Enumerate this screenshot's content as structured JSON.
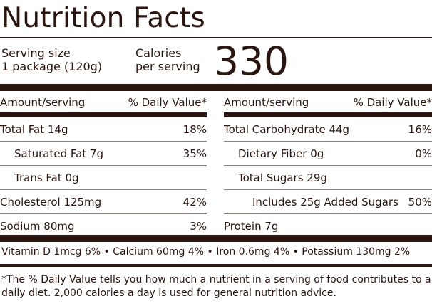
{
  "title": "Nutrition Facts",
  "serving": {
    "label": "Serving size",
    "value": "1 package (120g)"
  },
  "calories": {
    "label_line1": "Calories",
    "label_line2": "per serving",
    "value": "330"
  },
  "left": {
    "header": {
      "amount": "Amount/serving",
      "dv": "% Daily Value*"
    },
    "rows": [
      {
        "name": "Total Fat 14g",
        "dv": "18%"
      },
      {
        "name": "Saturated Fat 7g",
        "dv": "35%"
      },
      {
        "name": "Trans Fat 0g",
        "dv": ""
      },
      {
        "name": "Cholesterol 125mg",
        "dv": "42%"
      },
      {
        "name": "Sodium 80mg",
        "dv": "3%"
      }
    ]
  },
  "right": {
    "header": {
      "amount": "Amount/serving",
      "dv": "% Daily Value*"
    },
    "rows": [
      {
        "name": "Total Carbohydrate 44g",
        "dv": "16%"
      },
      {
        "name": "Dietary Fiber 0g",
        "dv": "0%"
      },
      {
        "name": "Total Sugars 29g",
        "dv": ""
      },
      {
        "name": "Includes 25g Added Sugars",
        "dv": "50%"
      },
      {
        "name": "Protein 7g",
        "dv": ""
      }
    ]
  },
  "vitamins": "Vitamin D 1mcg 6% • Calcium 60mg 4% • Iron 0.6mg 4% • Potassium 130mg 2%",
  "footnote": "*The % Daily Value tells you how much a nutrient in a serving of food contributes to a daily diet. 2,000 calories a day is used for general nutrition advice.",
  "colors": {
    "ink": "#2a1510",
    "background": "#ffffff"
  }
}
